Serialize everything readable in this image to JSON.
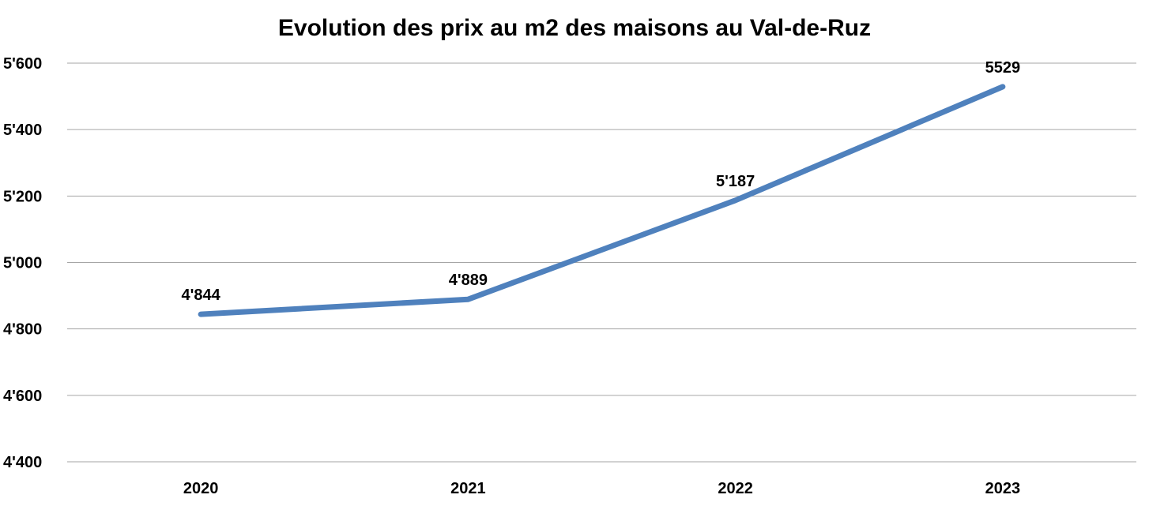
{
  "chart_data": {
    "type": "line",
    "title": "Evolution des prix au m2 des maisons au Val-de-Ruz",
    "xlabel": "",
    "ylabel": "",
    "categories": [
      "2020",
      "2021",
      "2022",
      "2023"
    ],
    "series": [
      {
        "values": [
          4844,
          4889,
          5187,
          5529
        ],
        "data_labels": [
          "4'844",
          "4'889",
          "5'187",
          "5529"
        ],
        "color": "#4f81bd"
      }
    ],
    "ylim": [
      4400,
      5600
    ],
    "y_ticks": [
      4400,
      4600,
      4800,
      5000,
      5200,
      5400,
      5600
    ],
    "y_tick_labels": [
      "4'400",
      "4'600",
      "4'800",
      "5'000",
      "5'200",
      "5'400",
      "5'600"
    ],
    "grid": true,
    "legend": "none"
  }
}
